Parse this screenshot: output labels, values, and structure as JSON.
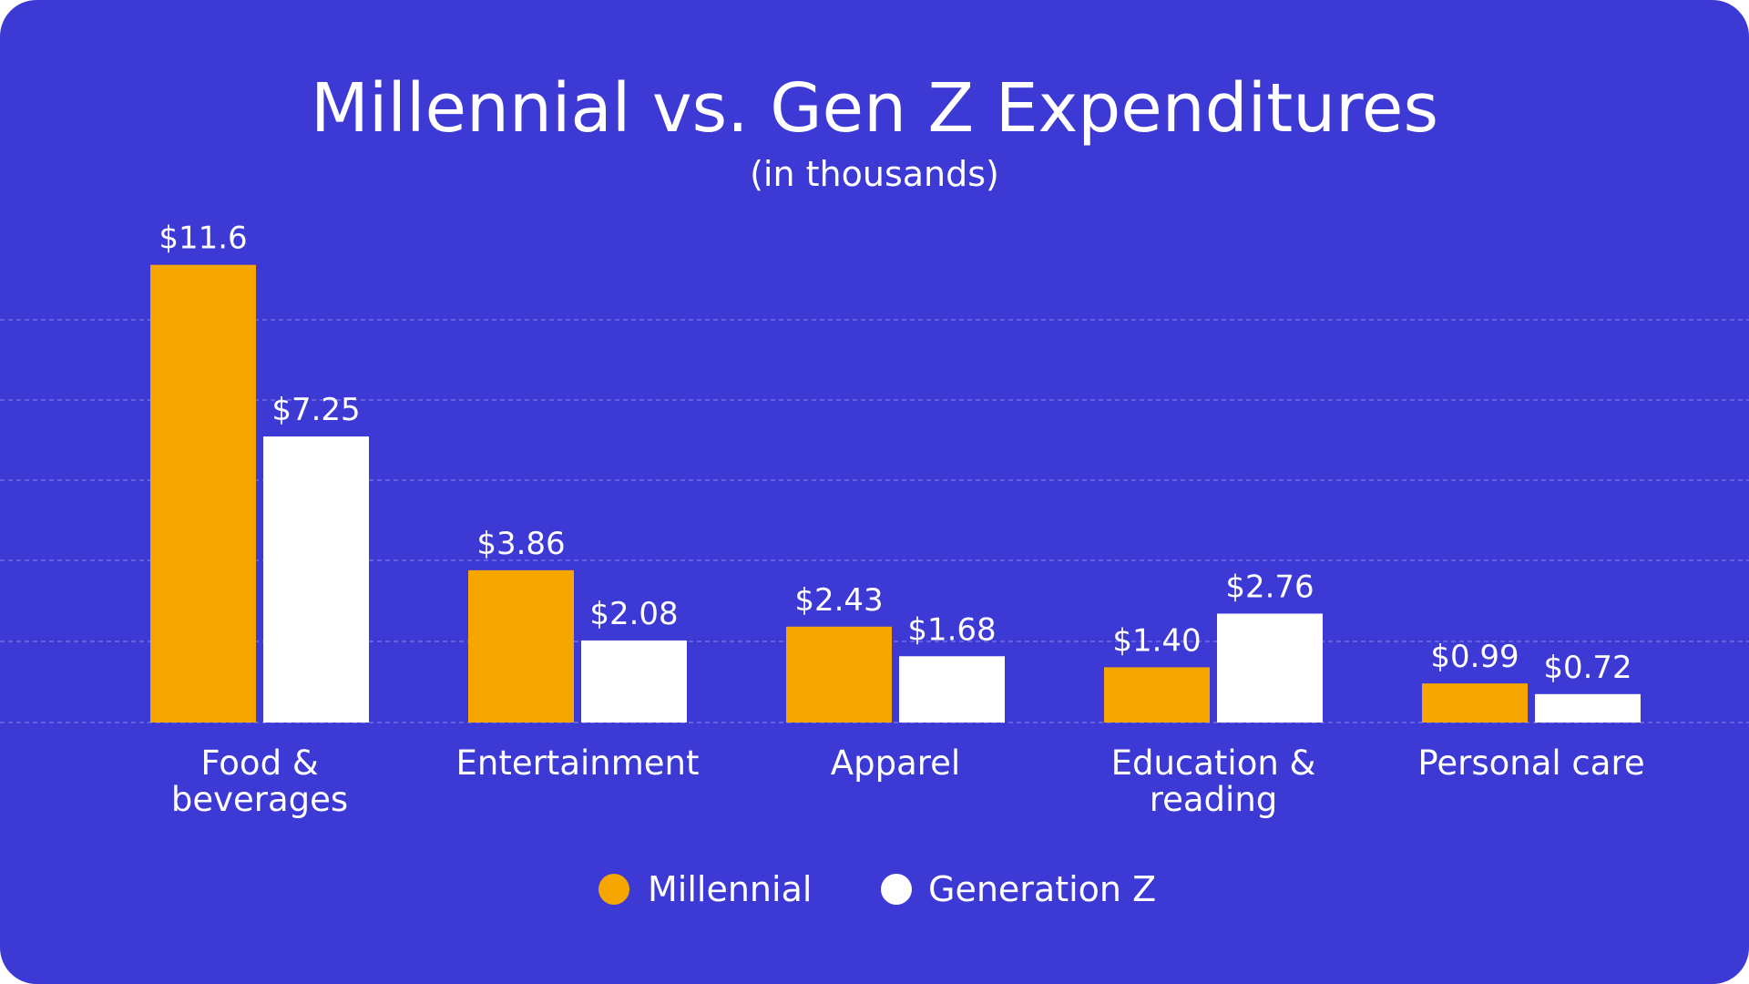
{
  "chart_data": {
    "type": "bar",
    "title": "Millennial vs. Gen Z Expenditures",
    "subtitle": "(in thousands)",
    "categories": [
      [
        "Food &",
        "beverages"
      ],
      [
        "Entertainment"
      ],
      [
        "Apparel"
      ],
      [
        "Education &",
        "reading"
      ],
      [
        "Personal care"
      ]
    ],
    "series": [
      {
        "name": "Millennial",
        "color": "#f5a700",
        "values": [
          11.6,
          3.86,
          2.43,
          1.4,
          0.99
        ],
        "labels": [
          "$11.6",
          "$3.86",
          "$2.43",
          "$1.40",
          "$0.99"
        ]
      },
      {
        "name": "Generation Z",
        "color": "#ffffff",
        "values": [
          7.25,
          2.08,
          1.68,
          2.76,
          0.72
        ],
        "labels": [
          "$7.25",
          "$2.08",
          "$1.68",
          "$2.76",
          "$0.72"
        ]
      }
    ],
    "ylim": [
      0,
      12
    ],
    "grid": true,
    "legend_position": "bottom-center",
    "background_color": "#3d39d4",
    "grid_color": "#8d8be8"
  }
}
